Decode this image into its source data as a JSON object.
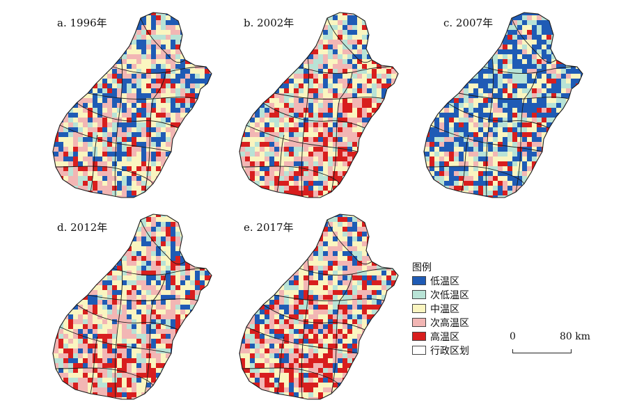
{
  "panels": [
    {
      "title": "a. 1996年",
      "dominant": "mixed"
    },
    {
      "title": "b. 2002年",
      "dominant": "warm"
    },
    {
      "title": "c. 2007年",
      "dominant": "cool"
    },
    {
      "title": "d. 2012年",
      "dominant": "warm"
    },
    {
      "title": "e. 2017年",
      "dominant": "hot"
    }
  ],
  "legend": {
    "title": "图例",
    "items": [
      {
        "label": "低温区",
        "color": "#1f5bb5"
      },
      {
        "label": "次低温区",
        "color": "#b8e3d6"
      },
      {
        "label": "中温区",
        "color": "#faf5c0"
      },
      {
        "label": "次高温区",
        "color": "#f2b6b4"
      },
      {
        "label": "高温区",
        "color": "#d81e1e"
      },
      {
        "label": "行政区划",
        "color": "#ffffff"
      }
    ]
  },
  "scale_bar": {
    "start": "0",
    "end": "80 km"
  }
}
